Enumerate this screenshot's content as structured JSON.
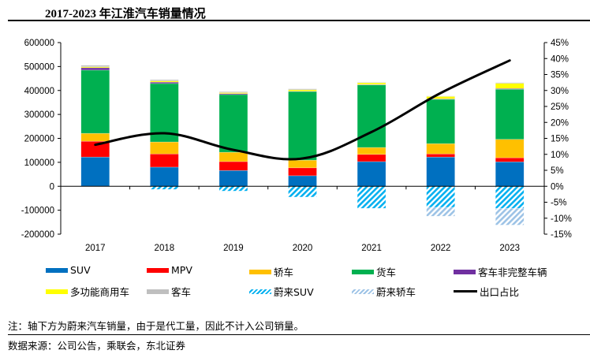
{
  "title": "2017-2023 年江淮汽车销量情况",
  "note": "注：轴下方为蔚来汽车销量，由于是代工量，因此不计入公司销量。",
  "source": "数据来源：公司公告，乘联会，东北证券",
  "chart_data": {
    "type": "bar",
    "subtype": "stacked-bar-with-line",
    "title": "2017-2023 年江淮汽车销量情况",
    "categories": [
      "2017",
      "2018",
      "2019",
      "2020",
      "2021",
      "2022",
      "2023"
    ],
    "left_axis": {
      "ylim": [
        -200000,
        600000
      ],
      "ticks": [
        "600000",
        "500000",
        "400000",
        "300000",
        "200000",
        "100000",
        "0",
        "-100000",
        "-200000"
      ],
      "tick_values": [
        600000,
        500000,
        400000,
        300000,
        200000,
        100000,
        0,
        -100000,
        -200000
      ]
    },
    "right_axis": {
      "ylim": [
        -15,
        45
      ],
      "ticks": [
        "45%",
        "40%",
        "35%",
        "30%",
        "25%",
        "20%",
        "15%",
        "10%",
        "5%",
        "0%",
        "-5%",
        "-10%",
        "-15%"
      ],
      "tick_values": [
        45,
        40,
        35,
        30,
        25,
        20,
        15,
        10,
        5,
        0,
        -5,
        -10,
        -15
      ]
    },
    "series": [
      {
        "name": "SUV",
        "color": "#0070C0",
        "pattern": "solid",
        "axis": "left",
        "values": [
          122000,
          80000,
          66000,
          44000,
          103000,
          122000,
          102000
        ]
      },
      {
        "name": "MPV",
        "color": "#FF0000",
        "pattern": "solid",
        "axis": "left",
        "values": [
          66000,
          55000,
          37000,
          33000,
          30000,
          13000,
          17000
        ]
      },
      {
        "name": "轿车",
        "color": "#FFC000",
        "pattern": "solid",
        "axis": "left",
        "values": [
          33000,
          50000,
          39000,
          32000,
          29000,
          43000,
          77000
        ]
      },
      {
        "name": "货车",
        "color": "#00B050",
        "pattern": "solid",
        "axis": "left",
        "values": [
          264000,
          244000,
          241000,
          287000,
          261000,
          185000,
          209000
        ]
      },
      {
        "name": "客车非完整车辆",
        "color": "#7030A0",
        "pattern": "solid",
        "axis": "left",
        "values": [
          10000,
          6000,
          4000,
          1000,
          2000,
          2000,
          3000
        ]
      },
      {
        "name": "多功能商用车",
        "color": "#FFFF00",
        "pattern": "solid",
        "axis": "left",
        "values": [
          4000,
          5000,
          4000,
          6000,
          7000,
          10000,
          22000
        ]
      },
      {
        "name": "客车",
        "color": "#BFBFBF",
        "pattern": "solid",
        "axis": "left",
        "values": [
          6000,
          5000,
          4000,
          4000,
          2000,
          2000,
          3000
        ]
      },
      {
        "name": "蔚来SUV",
        "color": "#00B0F0",
        "pattern": "hatch-dense",
        "axis": "left",
        "values": [
          0,
          -13000,
          -20000,
          -45000,
          -92000,
          -88000,
          -92000
        ]
      },
      {
        "name": "蔚来轿车",
        "color": "#9DC3E6",
        "pattern": "hatch-light",
        "axis": "left",
        "values": [
          0,
          0,
          0,
          0,
          0,
          -37000,
          -70000
        ]
      },
      {
        "name": "出口占比",
        "color": "#000000",
        "type": "line",
        "axis": "right",
        "unit": "%",
        "values": [
          13,
          16.6,
          11.4,
          8.7,
          17,
          29.2,
          39.4
        ]
      }
    ],
    "legend": {
      "placement": "bottom",
      "items": [
        {
          "label": "SUV",
          "color": "#0070C0",
          "kind": "solid"
        },
        {
          "label": "MPV",
          "color": "#FF0000",
          "kind": "solid"
        },
        {
          "label": "轿车",
          "color": "#FFC000",
          "kind": "solid"
        },
        {
          "label": "货车",
          "color": "#00B050",
          "kind": "solid"
        },
        {
          "label": "客车非完整车辆",
          "color": "#7030A0",
          "kind": "solid"
        },
        {
          "label": "多功能商用车",
          "color": "#FFFF00",
          "kind": "solid"
        },
        {
          "label": "客车",
          "color": "#BFBFBF",
          "kind": "solid"
        },
        {
          "label": "蔚来SUV",
          "color": "#00B0F0",
          "kind": "hatch-dense"
        },
        {
          "label": "蔚来轿车",
          "color": "#9DC3E6",
          "kind": "hatch-light"
        },
        {
          "label": "出口占比",
          "color": "#000000",
          "kind": "line"
        }
      ]
    },
    "grid": false,
    "xlabel": "",
    "ylabel": ""
  }
}
